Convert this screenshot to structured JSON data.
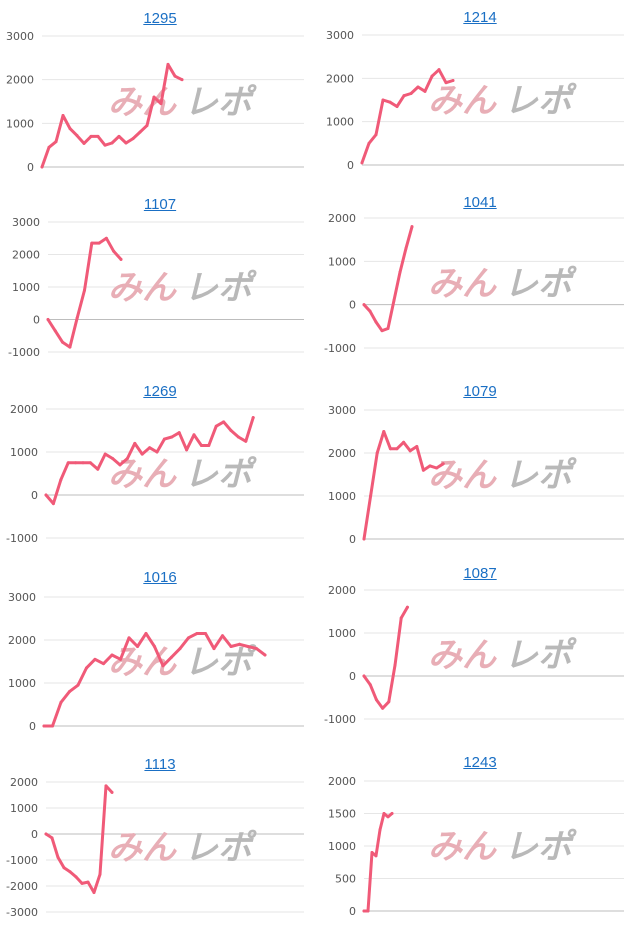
{
  "watermark": {
    "part1": "みん",
    "part2": "レポ"
  },
  "chart_data": [
    {
      "type": "line",
      "title": "1295",
      "ylim": [
        0,
        3000
      ],
      "yticks": [
        0,
        1000,
        2000,
        3000
      ],
      "values": [
        0,
        450,
        580,
        1180,
        880,
        720,
        540,
        700,
        700,
        500,
        550,
        700,
        550,
        650,
        800,
        950,
        1600,
        1450,
        2350,
        2080,
        2000
      ]
    },
    {
      "type": "line",
      "title": "1214",
      "ylim": [
        0,
        3000
      ],
      "yticks": [
        0,
        1000,
        2000,
        3000
      ],
      "values": [
        50,
        500,
        700,
        1500,
        1450,
        1350,
        1600,
        1650,
        1800,
        1700,
        2050,
        2200,
        1900,
        1950
      ]
    },
    {
      "type": "line",
      "title": "1107",
      "ylim": [
        -1000,
        3000
      ],
      "yticks": [
        -1000,
        0,
        1000,
        2000,
        3000
      ],
      "values": [
        0,
        -350,
        -700,
        -850,
        50,
        900,
        2350,
        2350,
        2500,
        2100,
        1850
      ]
    },
    {
      "type": "line",
      "title": "1041",
      "ylim": [
        -1000,
        2000
      ],
      "yticks": [
        -1000,
        0,
        1000,
        2000
      ],
      "values": [
        0,
        -150,
        -400,
        -600,
        -550,
        100,
        750,
        1300,
        1800
      ]
    },
    {
      "type": "line",
      "title": "1269",
      "ylim": [
        -1000,
        2000
      ],
      "yticks": [
        -1000,
        0,
        1000,
        2000
      ],
      "values": [
        0,
        -200,
        350,
        750,
        750,
        750,
        750,
        600,
        950,
        850,
        700,
        850,
        1200,
        950,
        1100,
        1000,
        1300,
        1350,
        1450,
        1050,
        1400,
        1150,
        1150,
        1600,
        1700,
        1500,
        1350,
        1250,
        1800
      ]
    },
    {
      "type": "line",
      "title": "1079",
      "ylim": [
        0,
        3000
      ],
      "yticks": [
        0,
        1000,
        2000,
        3000
      ],
      "values": [
        0,
        1000,
        2000,
        2500,
        2100,
        2100,
        2250,
        2050,
        2150,
        1600,
        1700,
        1650,
        1750
      ]
    },
    {
      "type": "line",
      "title": "1016",
      "ylim": [
        0,
        3000
      ],
      "yticks": [
        0,
        1000,
        2000,
        3000
      ],
      "values": [
        0,
        0,
        550,
        800,
        950,
        1350,
        1550,
        1450,
        1650,
        1550,
        2050,
        1850,
        2150,
        1850,
        1400,
        1600,
        1800,
        2050,
        2150,
        2150,
        1800,
        2100,
        1850,
        1900,
        1850,
        1800,
        1650
      ]
    },
    {
      "type": "line",
      "title": "1087",
      "ylim": [
        -1000,
        2000
      ],
      "yticks": [
        -1000,
        0,
        1000,
        2000
      ],
      "values": [
        0,
        -200,
        -550,
        -750,
        -600,
        250,
        1350,
        1600
      ]
    },
    {
      "type": "line",
      "title": "1113",
      "ylim": [
        -3000,
        2000
      ],
      "yticks": [
        -3000,
        -2000,
        -1000,
        0,
        1000,
        2000
      ],
      "values": [
        0,
        -150,
        -900,
        -1300,
        -1450,
        -1650,
        -1900,
        -1850,
        -2250,
        -1550,
        1850,
        1600
      ]
    },
    {
      "type": "line",
      "title": "1243",
      "ylim": [
        0,
        2000
      ],
      "yticks": [
        0,
        500,
        1000,
        1500,
        2000
      ],
      "values": [
        0,
        0,
        900,
        850,
        1250,
        1500,
        1450,
        1500
      ]
    }
  ]
}
